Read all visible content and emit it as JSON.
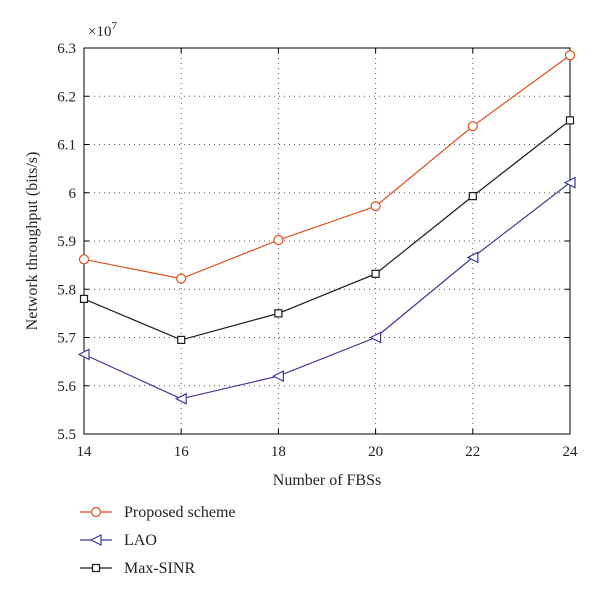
{
  "chart_data": {
    "type": "line",
    "x": [
      14,
      16,
      18,
      20,
      22,
      24
    ],
    "xlabel": "Number of FBSs",
    "ylabel": "Network throughput (bits/s)",
    "y_multiplier": "×10",
    "y_exponent": "7",
    "xlim": [
      14,
      24
    ],
    "ylim": [
      5.5,
      6.3
    ],
    "xticks": [
      14,
      16,
      18,
      20,
      22,
      24
    ],
    "yticks": [
      5.5,
      5.6,
      5.7,
      5.8,
      5.9,
      6,
      6.1,
      6.2,
      6.3
    ],
    "ytick_labels": [
      "5.5",
      "5.6",
      "5.7",
      "5.8",
      "5.9",
      "6",
      "6.1",
      "6.2",
      "6.3"
    ],
    "grid": true,
    "legend_position": "below",
    "series": [
      {
        "name": "Proposed scheme",
        "marker": "circle",
        "color": "#e0501e",
        "values": [
          5.862,
          5.822,
          5.902,
          5.972,
          6.138,
          6.285
        ]
      },
      {
        "name": "LAO",
        "marker": "triangle-left",
        "color": "#3b3b9a",
        "values": [
          5.665,
          5.573,
          5.62,
          5.7,
          5.866,
          6.021
        ]
      },
      {
        "name": "Max-SINR",
        "marker": "square",
        "color": "#1a1a1a",
        "values": [
          5.78,
          5.695,
          5.75,
          5.832,
          5.993,
          6.15
        ]
      }
    ]
  }
}
